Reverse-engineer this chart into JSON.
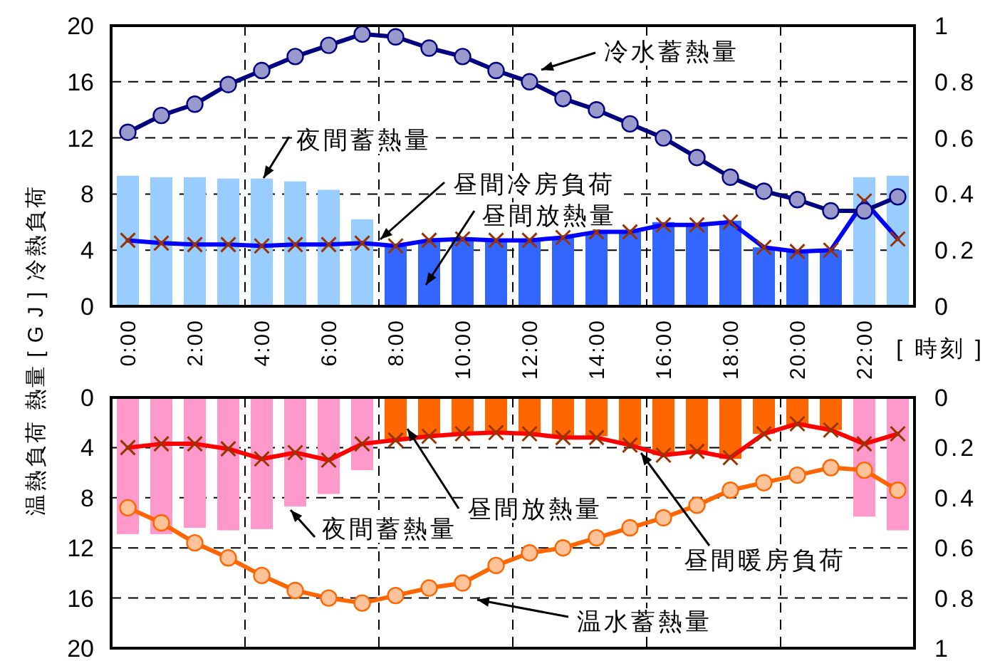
{
  "chart_data": [
    {
      "type": "bar",
      "ylabel": "冷熱負荷",
      "xlabel": "[ 時刻 ]",
      "categories": [
        "0:00",
        null,
        "2:00",
        null,
        "4:00",
        null,
        "6:00",
        null,
        "8:00",
        null,
        "10:00",
        null,
        "12:00",
        null,
        "14:00",
        null,
        "16:00",
        null,
        "18:00",
        null,
        "20:00",
        null,
        "22:00",
        null
      ],
      "ylim": [
        0,
        20
      ],
      "yticks": [
        0,
        4,
        8,
        12,
        16,
        20
      ],
      "y2lim": [
        0,
        1
      ],
      "y2ticks": [
        0,
        0.2,
        0.4,
        0.6,
        0.8,
        1
      ],
      "grid": true,
      "annotations": [
        "熱量 [ G J ]"
      ],
      "series": [
        {
          "name": "夜間蓄熱量",
          "color": "#99ccff",
          "values": [
            9.3,
            9.2,
            9.2,
            9.1,
            9.1,
            8.9,
            8.3,
            6.2,
            null,
            null,
            null,
            null,
            null,
            null,
            null,
            null,
            null,
            null,
            null,
            null,
            null,
            null,
            9.2,
            9.3
          ]
        },
        {
          "name": "昼間放熱量",
          "color": "#3366ff",
          "values": [
            null,
            null,
            null,
            null,
            null,
            null,
            null,
            null,
            4.3,
            4.6,
            4.8,
            4.7,
            4.7,
            4.9,
            5.3,
            5.3,
            6.0,
            5.8,
            6.1,
            4.2,
            4.0,
            4.0,
            null,
            null
          ]
        },
        {
          "name": "昼間冷房負荷",
          "type": "line",
          "marker": "cross",
          "color": "#0000ff",
          "values": [
            4.7,
            4.5,
            4.4,
            4.4,
            4.3,
            4.4,
            4.4,
            4.5,
            4.3,
            4.7,
            4.8,
            4.7,
            4.7,
            4.9,
            5.3,
            5.3,
            5.8,
            5.8,
            6.0,
            4.2,
            3.9,
            4.0,
            7.5,
            4.8
          ]
        },
        {
          "name": "冷水蓄熱量",
          "type": "line",
          "marker": "circle",
          "axis": "y2",
          "color": "#000080",
          "values": [
            0.62,
            0.68,
            0.72,
            0.79,
            0.84,
            0.89,
            0.93,
            0.97,
            0.96,
            0.92,
            0.89,
            0.84,
            0.8,
            0.74,
            0.7,
            0.65,
            0.6,
            0.53,
            0.46,
            0.41,
            0.38,
            0.34,
            0.34,
            0.39
          ]
        }
      ]
    },
    {
      "type": "bar",
      "ylabel": "温熱負荷",
      "categories": [
        null,
        null,
        null,
        null,
        null,
        null,
        null,
        null,
        null,
        null,
        null,
        null,
        null,
        null,
        null,
        null,
        null,
        null,
        null,
        null,
        null,
        null,
        null,
        null
      ],
      "tick_labels": "y",
      "ylim": [
        20,
        0
      ],
      "yticks": [
        0,
        4,
        8,
        12,
        16,
        20
      ],
      "y2lim": [
        1,
        0
      ],
      "y2ticks": [
        0,
        0.2,
        0.4,
        0.6,
        0.8,
        1
      ],
      "grid": true,
      "series": [
        {
          "name": "夜間蓄熱量",
          "color": "#ff99cc",
          "values": [
            10.9,
            10.9,
            10.4,
            10.6,
            10.5,
            8.7,
            7.7,
            5.8,
            null,
            null,
            null,
            null,
            null,
            null,
            null,
            null,
            null,
            null,
            null,
            null,
            null,
            null,
            9.5,
            10.6
          ]
        },
        {
          "name": "昼間放熱量",
          "color": "#ff6600",
          "values": [
            null,
            null,
            null,
            null,
            null,
            null,
            null,
            null,
            3.3,
            3.1,
            2.9,
            2.9,
            2.9,
            3.1,
            3.1,
            3.8,
            4.6,
            4.5,
            4.9,
            2.9,
            2.3,
            2.6,
            null,
            null
          ]
        },
        {
          "name": "昼間暖房負荷",
          "type": "line",
          "marker": "cross",
          "color": "#ff0000",
          "values": [
            4.0,
            3.7,
            3.7,
            4.1,
            4.9,
            4.4,
            5.0,
            3.7,
            3.4,
            3.1,
            2.9,
            2.8,
            2.9,
            3.2,
            3.2,
            3.8,
            4.6,
            4.3,
            4.8,
            2.9,
            2.1,
            2.6,
            3.7,
            2.9
          ]
        },
        {
          "name": "温水蓄熱量",
          "type": "line",
          "marker": "circle",
          "axis": "y2",
          "color": "#ff6600",
          "values": [
            0.44,
            0.5,
            0.58,
            0.64,
            0.71,
            0.77,
            0.8,
            0.82,
            0.79,
            0.76,
            0.74,
            0.67,
            0.62,
            0.6,
            0.56,
            0.52,
            0.48,
            0.43,
            0.37,
            0.34,
            0.31,
            0.28,
            0.29,
            0.37
          ]
        }
      ]
    }
  ]
}
